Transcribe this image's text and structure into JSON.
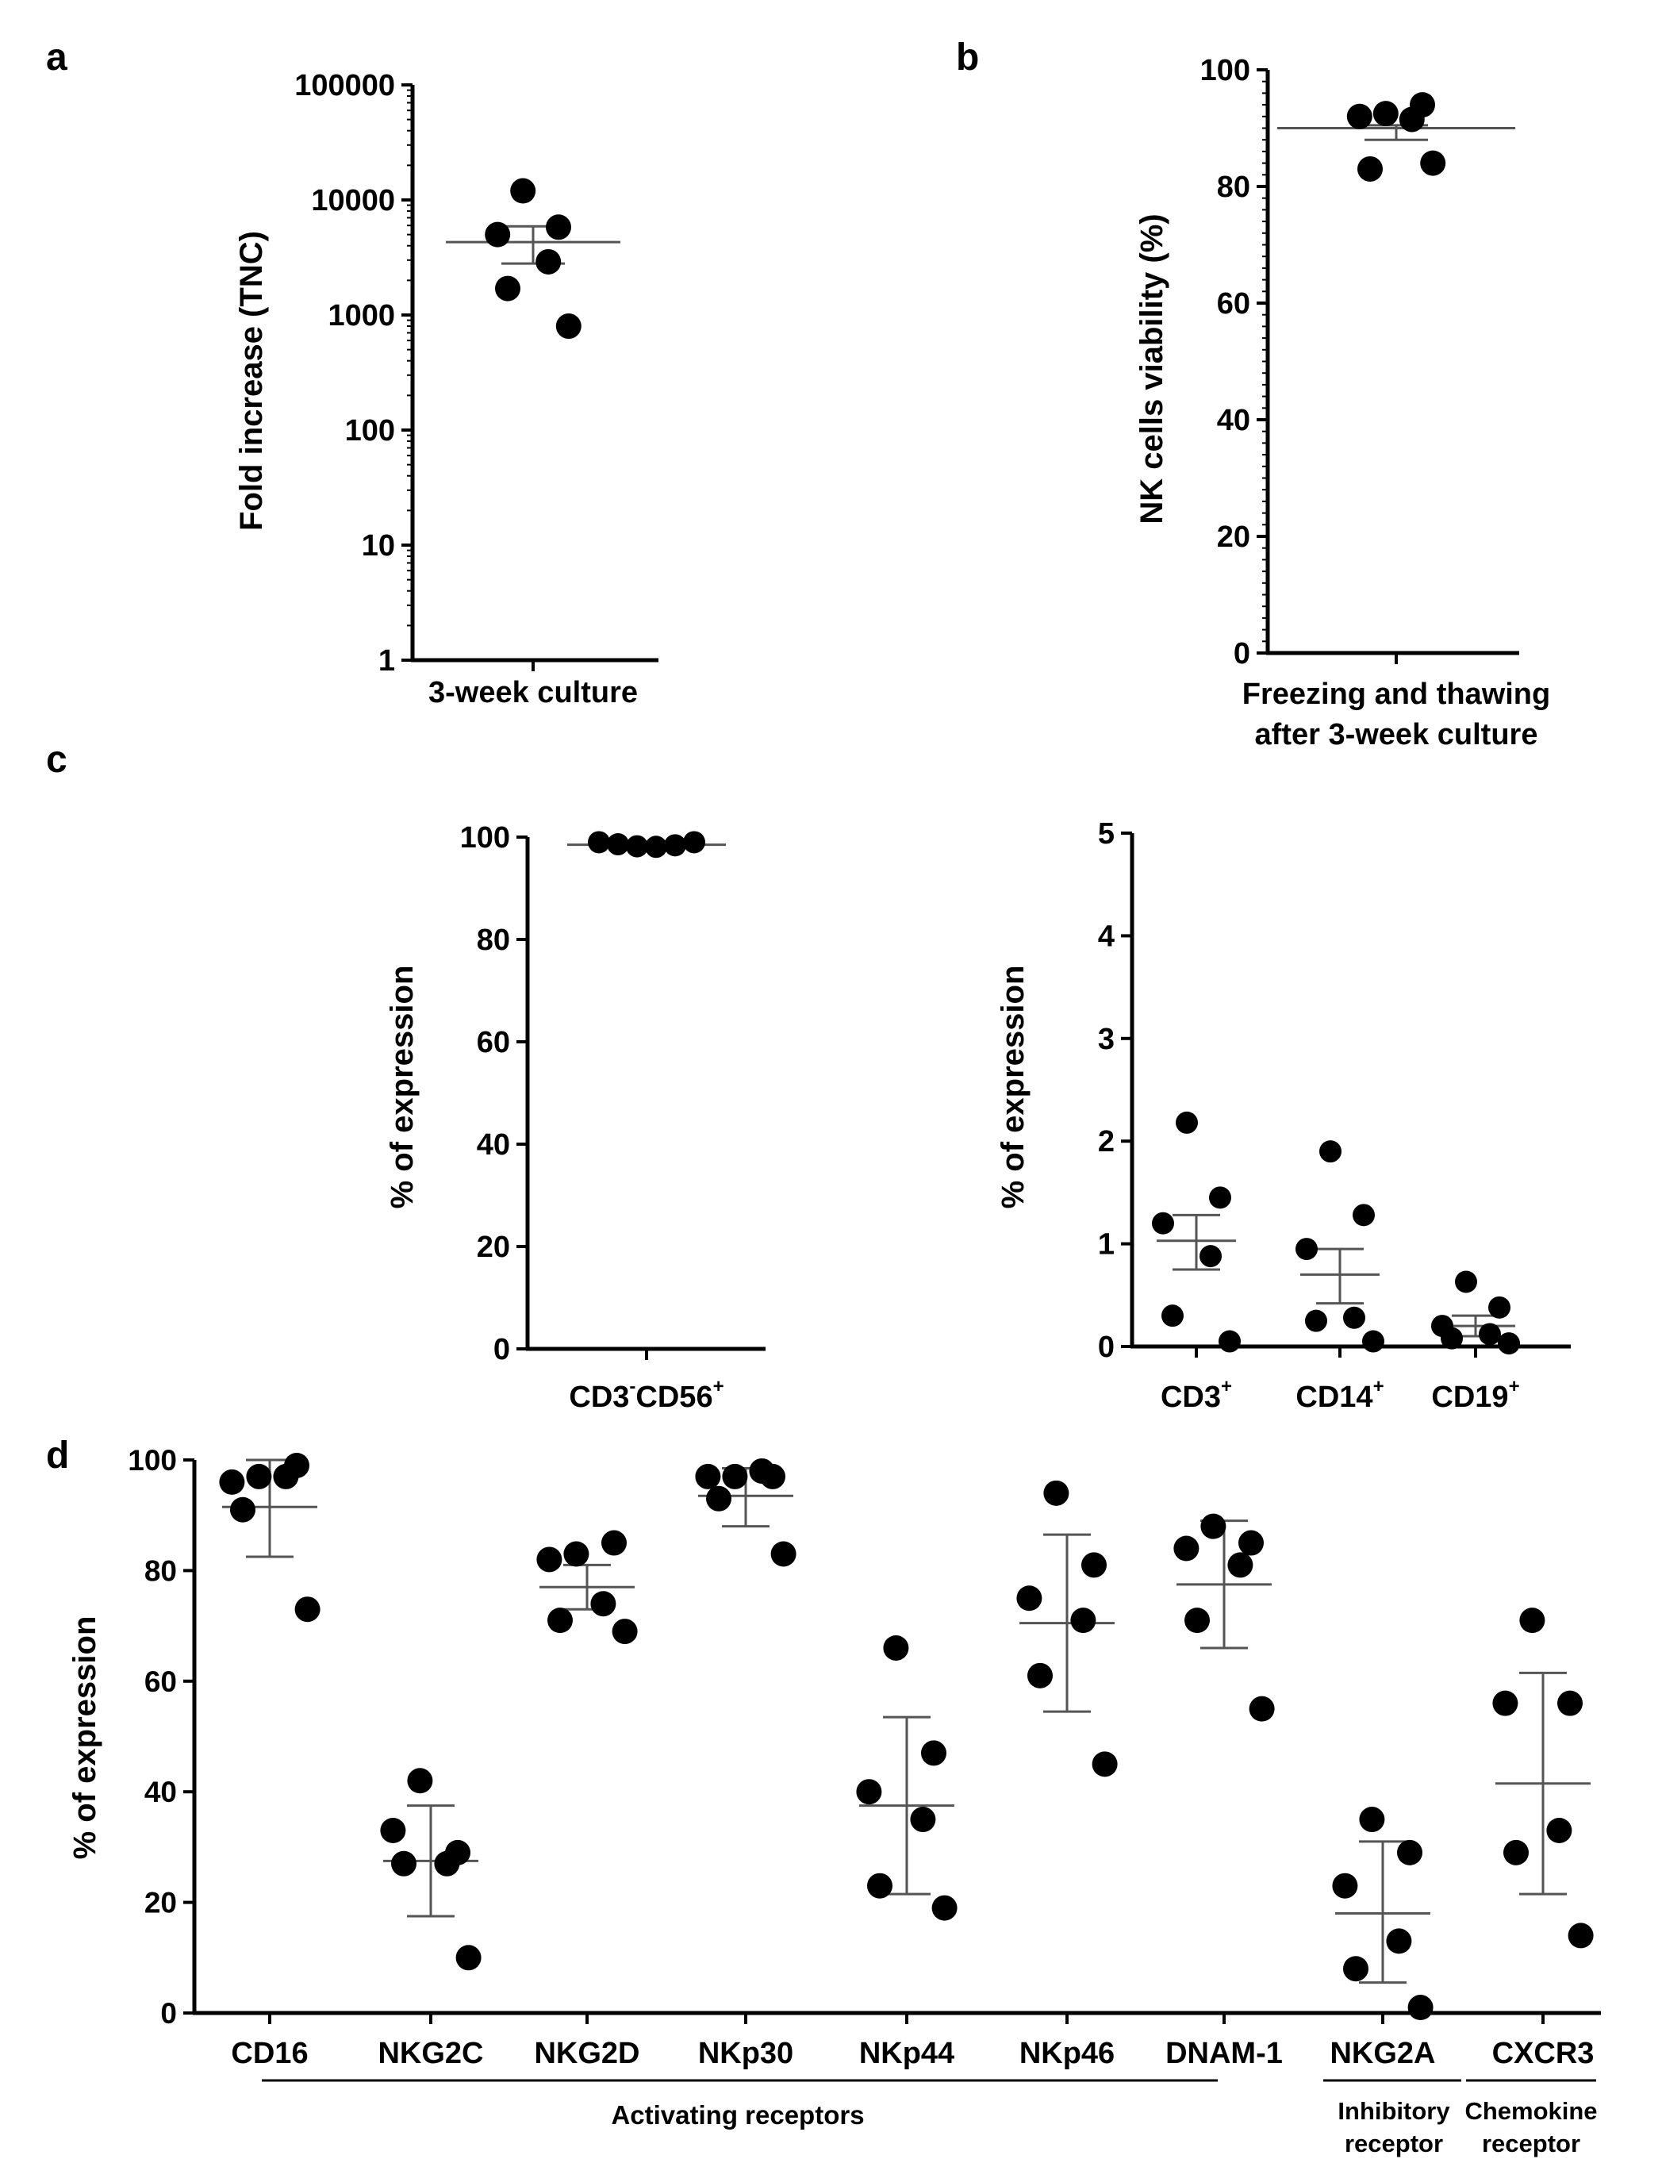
{
  "colors": {
    "points": "#000000",
    "axis": "#000000",
    "summary_lines": "#555555"
  },
  "panels": {
    "a": {
      "letter": "a"
    },
    "b": {
      "letter": "b"
    },
    "c": {
      "letter": "c"
    },
    "d": {
      "letter": "d"
    }
  },
  "chart_data": [
    {
      "id": "a",
      "type": "scatter",
      "yscale": "log",
      "ylabel": "Fold increase (TNC)",
      "xlabel": "3-week culture",
      "ylim": [
        1,
        100000
      ],
      "yticks": [
        1,
        10,
        100,
        1000,
        10000,
        100000
      ],
      "ytick_labels": [
        "1",
        "10",
        "100",
        "1000",
        "10000",
        "100000"
      ],
      "categories": [
        "3-week culture"
      ],
      "groups": [
        {
          "values": [
            12000,
            5800,
            5000,
            2900,
            1700,
            800
          ],
          "mean": 4300,
          "sem_low": 2800,
          "sem_high": 5900
        }
      ]
    },
    {
      "id": "b",
      "type": "scatter",
      "ylabel": "NK cells viability (%)",
      "xlabel_lines": [
        "Freezing and thawing",
        "after 3-week culture"
      ],
      "ylim": [
        0,
        100
      ],
      "yticks": [
        0,
        20,
        40,
        60,
        80,
        100
      ],
      "ytick_labels": [
        "0",
        "20",
        "40",
        "60",
        "80",
        "100"
      ],
      "groups": [
        {
          "values": [
            92.5,
            94,
            92,
            91.5,
            83,
            84
          ],
          "mean": 90,
          "sem_low": 88,
          "sem_high": 90.5
        }
      ]
    },
    {
      "id": "c1",
      "type": "scatter",
      "ylabel": "% of expression",
      "ylim": [
        0,
        100
      ],
      "yticks": [
        0,
        20,
        40,
        60,
        80,
        100
      ],
      "ytick_labels": [
        "0",
        "20",
        "40",
        "60",
        "80",
        "100"
      ],
      "categories": [
        "CD3",
        "CD56"
      ],
      "category_label": {
        "a": "CD3",
        "a_sup": "-",
        "b": "CD56",
        "b_sup": "+"
      },
      "groups": [
        {
          "values": [
            99,
            98.6,
            98.2,
            98.1,
            98.4,
            99
          ],
          "mean": 98.5,
          "sem_low": 98.3,
          "sem_high": 98.7
        }
      ]
    },
    {
      "id": "c2",
      "type": "scatter",
      "ylabel": "% of expression",
      "ylim": [
        0,
        5
      ],
      "yticks": [
        0,
        1,
        2,
        3,
        4,
        5
      ],
      "ytick_labels": [
        "0",
        "1",
        "2",
        "3",
        "4",
        "5"
      ],
      "categories": [
        "CD3",
        "CD14",
        "CD19"
      ],
      "category_sup": "+",
      "groups": [
        {
          "values": [
            2.18,
            1.45,
            1.2,
            0.88,
            0.3,
            0.05
          ],
          "mean": 1.03,
          "sem_low": 0.75,
          "sem_high": 1.28
        },
        {
          "values": [
            1.9,
            1.28,
            0.95,
            0.28,
            0.25,
            0.05
          ],
          "mean": 0.7,
          "sem_low": 0.42,
          "sem_high": 0.95
        },
        {
          "values": [
            0.63,
            0.38,
            0.2,
            0.12,
            0.08,
            0.03
          ],
          "mean": 0.2,
          "sem_low": 0.1,
          "sem_high": 0.3
        }
      ]
    },
    {
      "id": "d",
      "type": "scatter",
      "ylabel": "% of expression",
      "ylim": [
        0,
        100
      ],
      "yticks": [
        0,
        20,
        40,
        60,
        80,
        100
      ],
      "ytick_labels": [
        "0",
        "20",
        "40",
        "60",
        "80",
        "100"
      ],
      "categories": [
        "CD16",
        "NKG2C",
        "NKG2D",
        "NKp30",
        "NKp44",
        "NKp46",
        "DNAM-1",
        "NKG2A",
        "CXCR3"
      ],
      "groups": [
        {
          "values": [
            97,
            99,
            96,
            97,
            91,
            73
          ],
          "mean": 91.5,
          "sem_low": 82.5,
          "sem_high": 100
        },
        {
          "values": [
            42,
            29,
            33,
            27,
            27,
            10
          ],
          "mean": 27.5,
          "sem_low": 17.5,
          "sem_high": 37.5
        },
        {
          "values": [
            83,
            85,
            82,
            74,
            71,
            69
          ],
          "mean": 77,
          "sem_low": 73,
          "sem_high": 81
        },
        {
          "values": [
            97,
            97,
            97,
            98,
            93,
            83
          ],
          "mean": 93.5,
          "sem_low": 88,
          "sem_high": 98.5
        },
        {
          "values": [
            66,
            47,
            40,
            35,
            23,
            19
          ],
          "mean": 37.5,
          "sem_low": 21.5,
          "sem_high": 53.5
        },
        {
          "values": [
            94,
            81,
            75,
            71,
            61,
            45
          ],
          "mean": 70.5,
          "sem_low": 54.5,
          "sem_high": 86.5
        },
        {
          "values": [
            88,
            85,
            84,
            81,
            71,
            55
          ],
          "mean": 77.5,
          "sem_low": 66,
          "sem_high": 89
        },
        {
          "values": [
            35,
            29,
            23,
            13,
            8,
            1
          ],
          "mean": 18,
          "sem_low": 5.5,
          "sem_high": 31
        },
        {
          "values": [
            71,
            56,
            56,
            33,
            29,
            14
          ],
          "mean": 41.5,
          "sem_low": 21.5,
          "sem_high": 61.5
        }
      ],
      "brackets": [
        {
          "label": "Activating receptors",
          "lines": [
            "Activating receptors"
          ]
        },
        {
          "label": "Inhibitory receptor",
          "lines": [
            "Inhibitory",
            "receptor"
          ]
        },
        {
          "label": "Chemokine receptor",
          "lines": [
            "Chemokine",
            "receptor"
          ]
        }
      ]
    }
  ]
}
